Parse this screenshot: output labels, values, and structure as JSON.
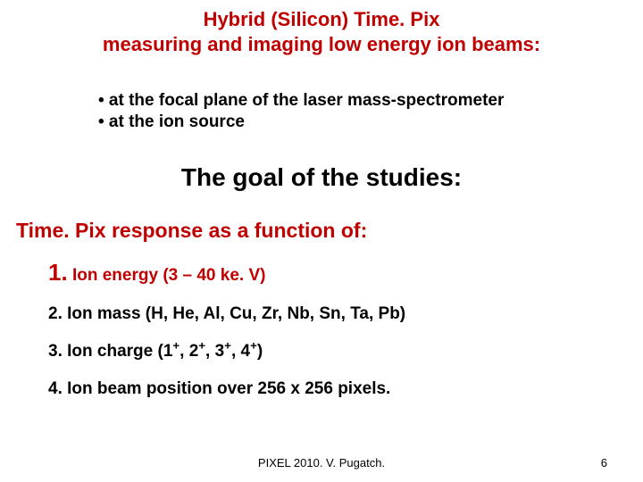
{
  "title_line1": "Hybrid (Silicon) Time. Pix",
  "title_line2": "measuring and imaging low energy ion beams:",
  "top_bullets": [
    "• at the focal plane of the laser mass-spectrometer",
    "• at the ion source"
  ],
  "goal_heading": "The goal of the studies:",
  "subheading": "Time. Pix response as a function of:",
  "items": [
    {
      "num": "1.",
      "text": "Ion energy  (3 – 40 ke. V)",
      "highlight": true
    },
    {
      "num": "2.",
      "text": "Ion mass (H, He, Al, Cu, Zr, Nb, Sn, Ta, Pb)",
      "highlight": false
    },
    {
      "num": "3.",
      "text": "Ion charge (1⁺, 2⁺, 3⁺, 4⁺)",
      "highlight": false,
      "use_sup": true,
      "text_pre": "Ion charge (1",
      "sup1": "+",
      "mid1": ", 2",
      "sup2": "+",
      "mid2": ", 3",
      "sup3": "+",
      "mid3": ", 4",
      "sup4": "+",
      "post": ")"
    },
    {
      "num": "4.",
      "text": "Ion beam position over 256 x 256 pixels.",
      "highlight": false
    }
  ],
  "footer_center": "PIXEL 2010. V. Pugatch.",
  "footer_page": "6",
  "colors": {
    "accent": "#c00000",
    "text": "#000000",
    "background": "#ffffff"
  }
}
